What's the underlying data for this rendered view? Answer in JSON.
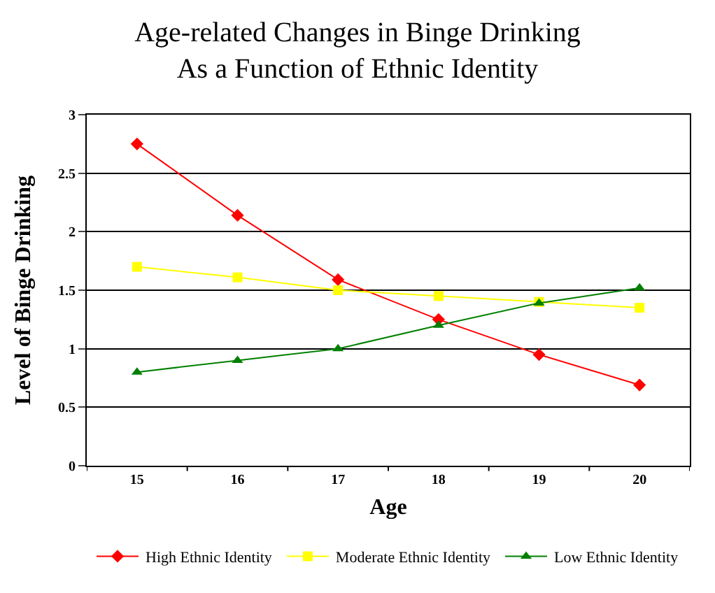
{
  "chart_data": {
    "type": "line",
    "title": "Age-related Changes in Binge Drinking\nAs a Function of Ethnic Identity",
    "xlabel": "Age",
    "ylabel": "Level of Binge Drinking",
    "categories": [
      "15",
      "16",
      "17",
      "18",
      "19",
      "20"
    ],
    "series": [
      {
        "name": "High Ethnic Identity",
        "color": "#ff0000",
        "marker": "diamond",
        "values": [
          2.75,
          2.14,
          1.59,
          1.25,
          0.95,
          0.69
        ]
      },
      {
        "name": "Moderate Ethnic Identity",
        "color": "#ffff00",
        "marker": "square",
        "values": [
          1.7,
          1.61,
          1.5,
          1.45,
          1.4,
          1.35
        ]
      },
      {
        "name": "Low Ethnic Identity",
        "color": "#008000",
        "marker": "triangle",
        "values": [
          0.8,
          0.9,
          1.0,
          1.2,
          1.39,
          1.52
        ]
      }
    ],
    "ylim": [
      0,
      3
    ],
    "yticks": [
      0,
      0.5,
      1,
      1.5,
      2,
      2.5,
      3
    ],
    "grid": "y",
    "legend": "bottom",
    "line_style": "solid"
  }
}
